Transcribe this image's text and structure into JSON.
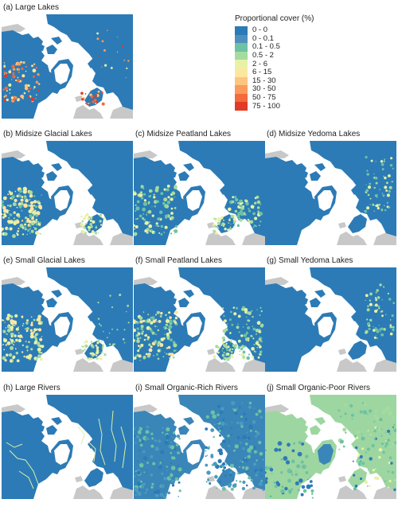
{
  "colors": {
    "ocean": "#ffffff",
    "land_gray": "#c8c8c8",
    "cover_blue": "#2c7bb6",
    "cover_lightblue": "#3f8fc0"
  },
  "legend": {
    "title": "Proportional cover (%)",
    "items": [
      {
        "label": "0 - 0",
        "color": "#2c7bb6"
      },
      {
        "label": "0 - 0.1",
        "color": "#4f8fbc"
      },
      {
        "label": "0.1 - 0.5",
        "color": "#6cc2a3"
      },
      {
        "label": "0.5 - 2",
        "color": "#a6dba0"
      },
      {
        "label": "2 - 6",
        "color": "#e8f2a6"
      },
      {
        "label": "6 - 15",
        "color": "#fde7a0"
      },
      {
        "label": "15 - 30",
        "color": "#fdc57d"
      },
      {
        "label": "30 - 50",
        "color": "#fb9a5a"
      },
      {
        "label": "50 - 75",
        "color": "#f36a3d"
      },
      {
        "label": "75 - 100",
        "color": "#e23a27"
      }
    ]
  },
  "panels": [
    {
      "title": "(a) Large Lakes",
      "style": "large"
    },
    {
      "title": "(b) Midsize Glacial Lakes",
      "style": "glacial"
    },
    {
      "title": "(c) Midsize Peatland Lakes",
      "style": "peat"
    },
    {
      "title": "(d) Midsize Yedoma Lakes",
      "style": "yedoma"
    },
    {
      "title": "(e) Small Glacial Lakes",
      "style": "glacial2"
    },
    {
      "title": "(f) Small Peatland Lakes",
      "style": "peat2"
    },
    {
      "title": "(g) Small Yedoma Lakes",
      "style": "yedoma"
    },
    {
      "title": "(h) Large Rivers",
      "style": "rivers"
    },
    {
      "title": "(i) Small Organic-Rich Rivers",
      "style": "rich"
    },
    {
      "title": "(j) Small Organic-Poor Rivers",
      "style": "poor"
    }
  ]
}
